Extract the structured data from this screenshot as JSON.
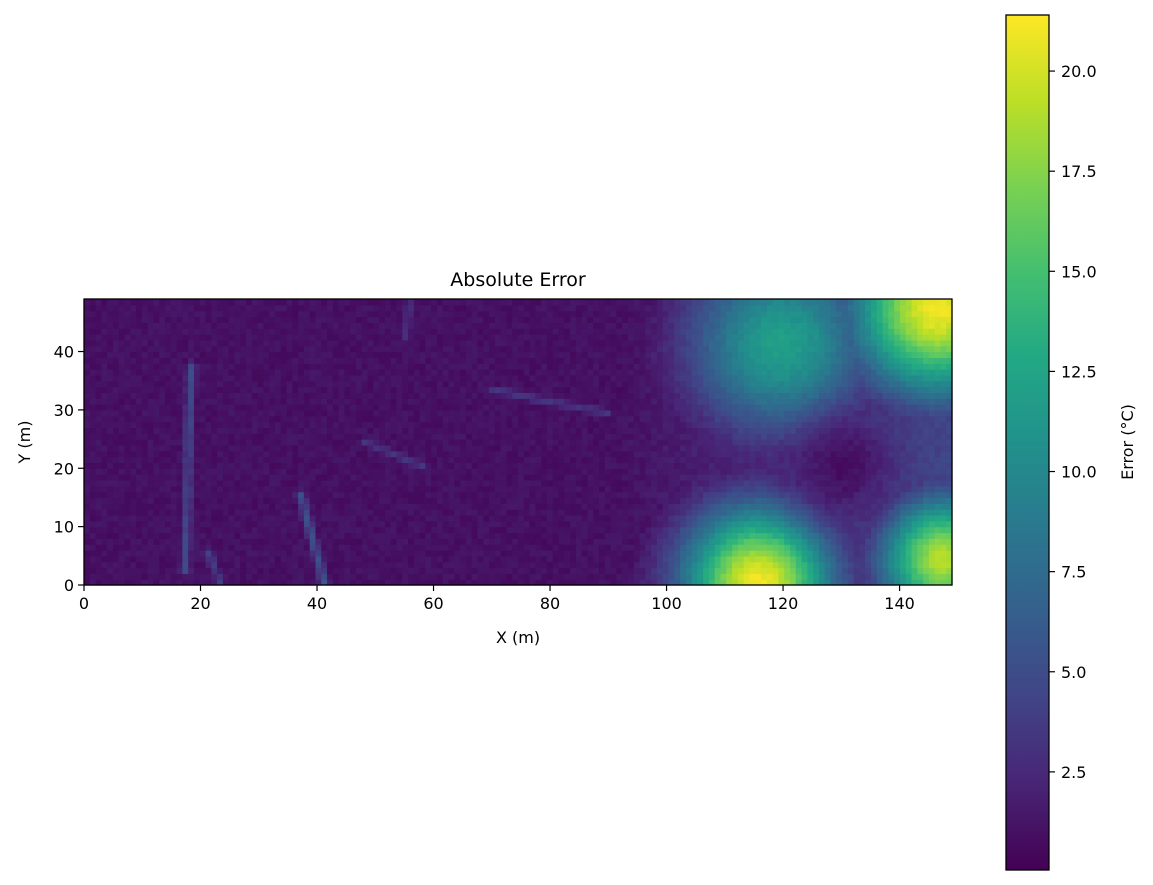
{
  "chart_data": {
    "type": "heatmap",
    "title": "Absolute Error",
    "xlabel": "X (m)",
    "ylabel": "Y (m)",
    "xlim": [
      0,
      149
    ],
    "ylim": [
      0,
      49
    ],
    "grid": false,
    "colormap": "viridis",
    "x_ticks": [
      {
        "value": 0,
        "label": "0"
      },
      {
        "value": 20,
        "label": "20"
      },
      {
        "value": 40,
        "label": "40"
      },
      {
        "value": 60,
        "label": "60"
      },
      {
        "value": 80,
        "label": "80"
      },
      {
        "value": 100,
        "label": "100"
      },
      {
        "value": 120,
        "label": "120"
      },
      {
        "value": 140,
        "label": "140"
      }
    ],
    "y_ticks": [
      {
        "value": 0,
        "label": "0"
      },
      {
        "value": 10,
        "label": "10"
      },
      {
        "value": 20,
        "label": "20"
      },
      {
        "value": 30,
        "label": "30"
      },
      {
        "value": 40,
        "label": "40"
      }
    ],
    "colorbar": {
      "label": "Error (°C)",
      "range": [
        0.05,
        21.4
      ],
      "ticks": [
        {
          "value": 2.5,
          "label": "2.5"
        },
        {
          "value": 5.0,
          "label": "5.0"
        },
        {
          "value": 7.5,
          "label": "7.5"
        },
        {
          "value": 10.0,
          "label": "10.0"
        },
        {
          "value": 12.5,
          "label": "12.5"
        },
        {
          "value": 15.0,
          "label": "15.0"
        },
        {
          "value": 17.5,
          "label": "17.5"
        },
        {
          "value": 20.0,
          "label": "20.0"
        }
      ]
    },
    "grid_shape": {
      "nx": 150,
      "ny": 49
    },
    "field_features": {
      "background_level": 1.0,
      "hot_spots": [
        {
          "x": 116,
          "y": 0,
          "value": 21.0,
          "radius": 13
        },
        {
          "x": 147,
          "y": 47,
          "value": 21.0,
          "radius": 15
        },
        {
          "x": 148,
          "y": 4,
          "value": 19.0,
          "radius": 11
        },
        {
          "x": 120,
          "y": 41,
          "value": 12.0,
          "radius": 16
        }
      ],
      "cool_spots": [
        {
          "x": 131,
          "y": 20,
          "value": 0.8,
          "radius": 8
        }
      ],
      "streaks": [
        {
          "x1": 18,
          "y1": 37,
          "x2": 17,
          "y2": 2,
          "value": 5.0
        },
        {
          "x1": 37,
          "y1": 15,
          "x2": 41,
          "y2": 0,
          "value": 5.5
        },
        {
          "x1": 21,
          "y1": 5,
          "x2": 23,
          "y2": 0,
          "value": 4.0
        },
        {
          "x1": 48,
          "y1": 24,
          "x2": 58,
          "y2": 20,
          "value": 3.5
        },
        {
          "x1": 70,
          "y1": 33,
          "x2": 90,
          "y2": 29,
          "value": 3.5
        },
        {
          "x1": 56,
          "y1": 49,
          "x2": 55,
          "y2": 42,
          "value": 3.0
        }
      ]
    }
  }
}
